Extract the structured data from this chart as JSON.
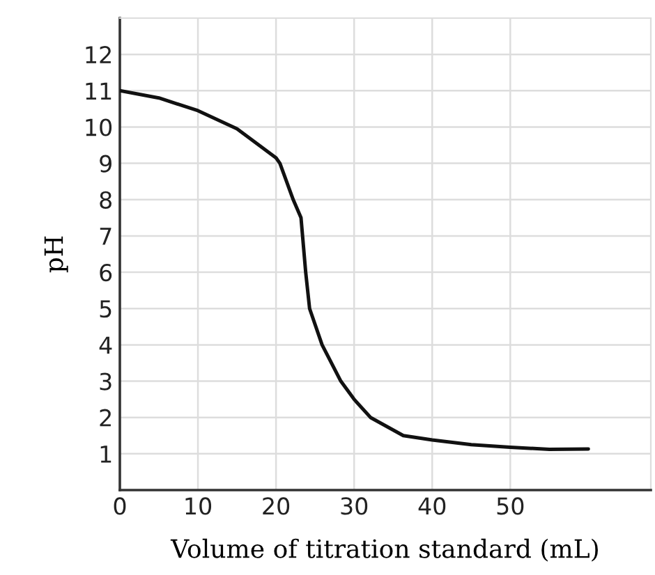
{
  "chart_data": {
    "type": "line",
    "xlabel": "Volume of titration standard (mL)",
    "ylabel": "pH",
    "series": [
      {
        "color": "#111111",
        "x": [
          0,
          5,
          10,
          15,
          20,
          20.5,
          22.2,
          23.2,
          23.4,
          23.8,
          24.3,
          25.9,
          28.3,
          30,
          32.1,
          36.3,
          40,
          45,
          50,
          55,
          60
        ],
        "values": [
          11,
          10.8,
          10.45,
          9.95,
          9.15,
          9,
          8,
          7.5,
          7,
          6,
          5,
          4,
          3,
          2.5,
          2,
          1.5,
          1.38,
          1.25,
          1.18,
          1.12,
          1.13
        ]
      }
    ],
    "xlim": [
      0,
      68
    ],
    "xticks": [
      0,
      10,
      20,
      30,
      40,
      50
    ],
    "ylim": [
      0,
      13
    ],
    "yticks": [
      1,
      2,
      3,
      4,
      5,
      6,
      7,
      8,
      9,
      10,
      11,
      12
    ],
    "grid": true,
    "marker": "none",
    "line_style": "solid"
  }
}
